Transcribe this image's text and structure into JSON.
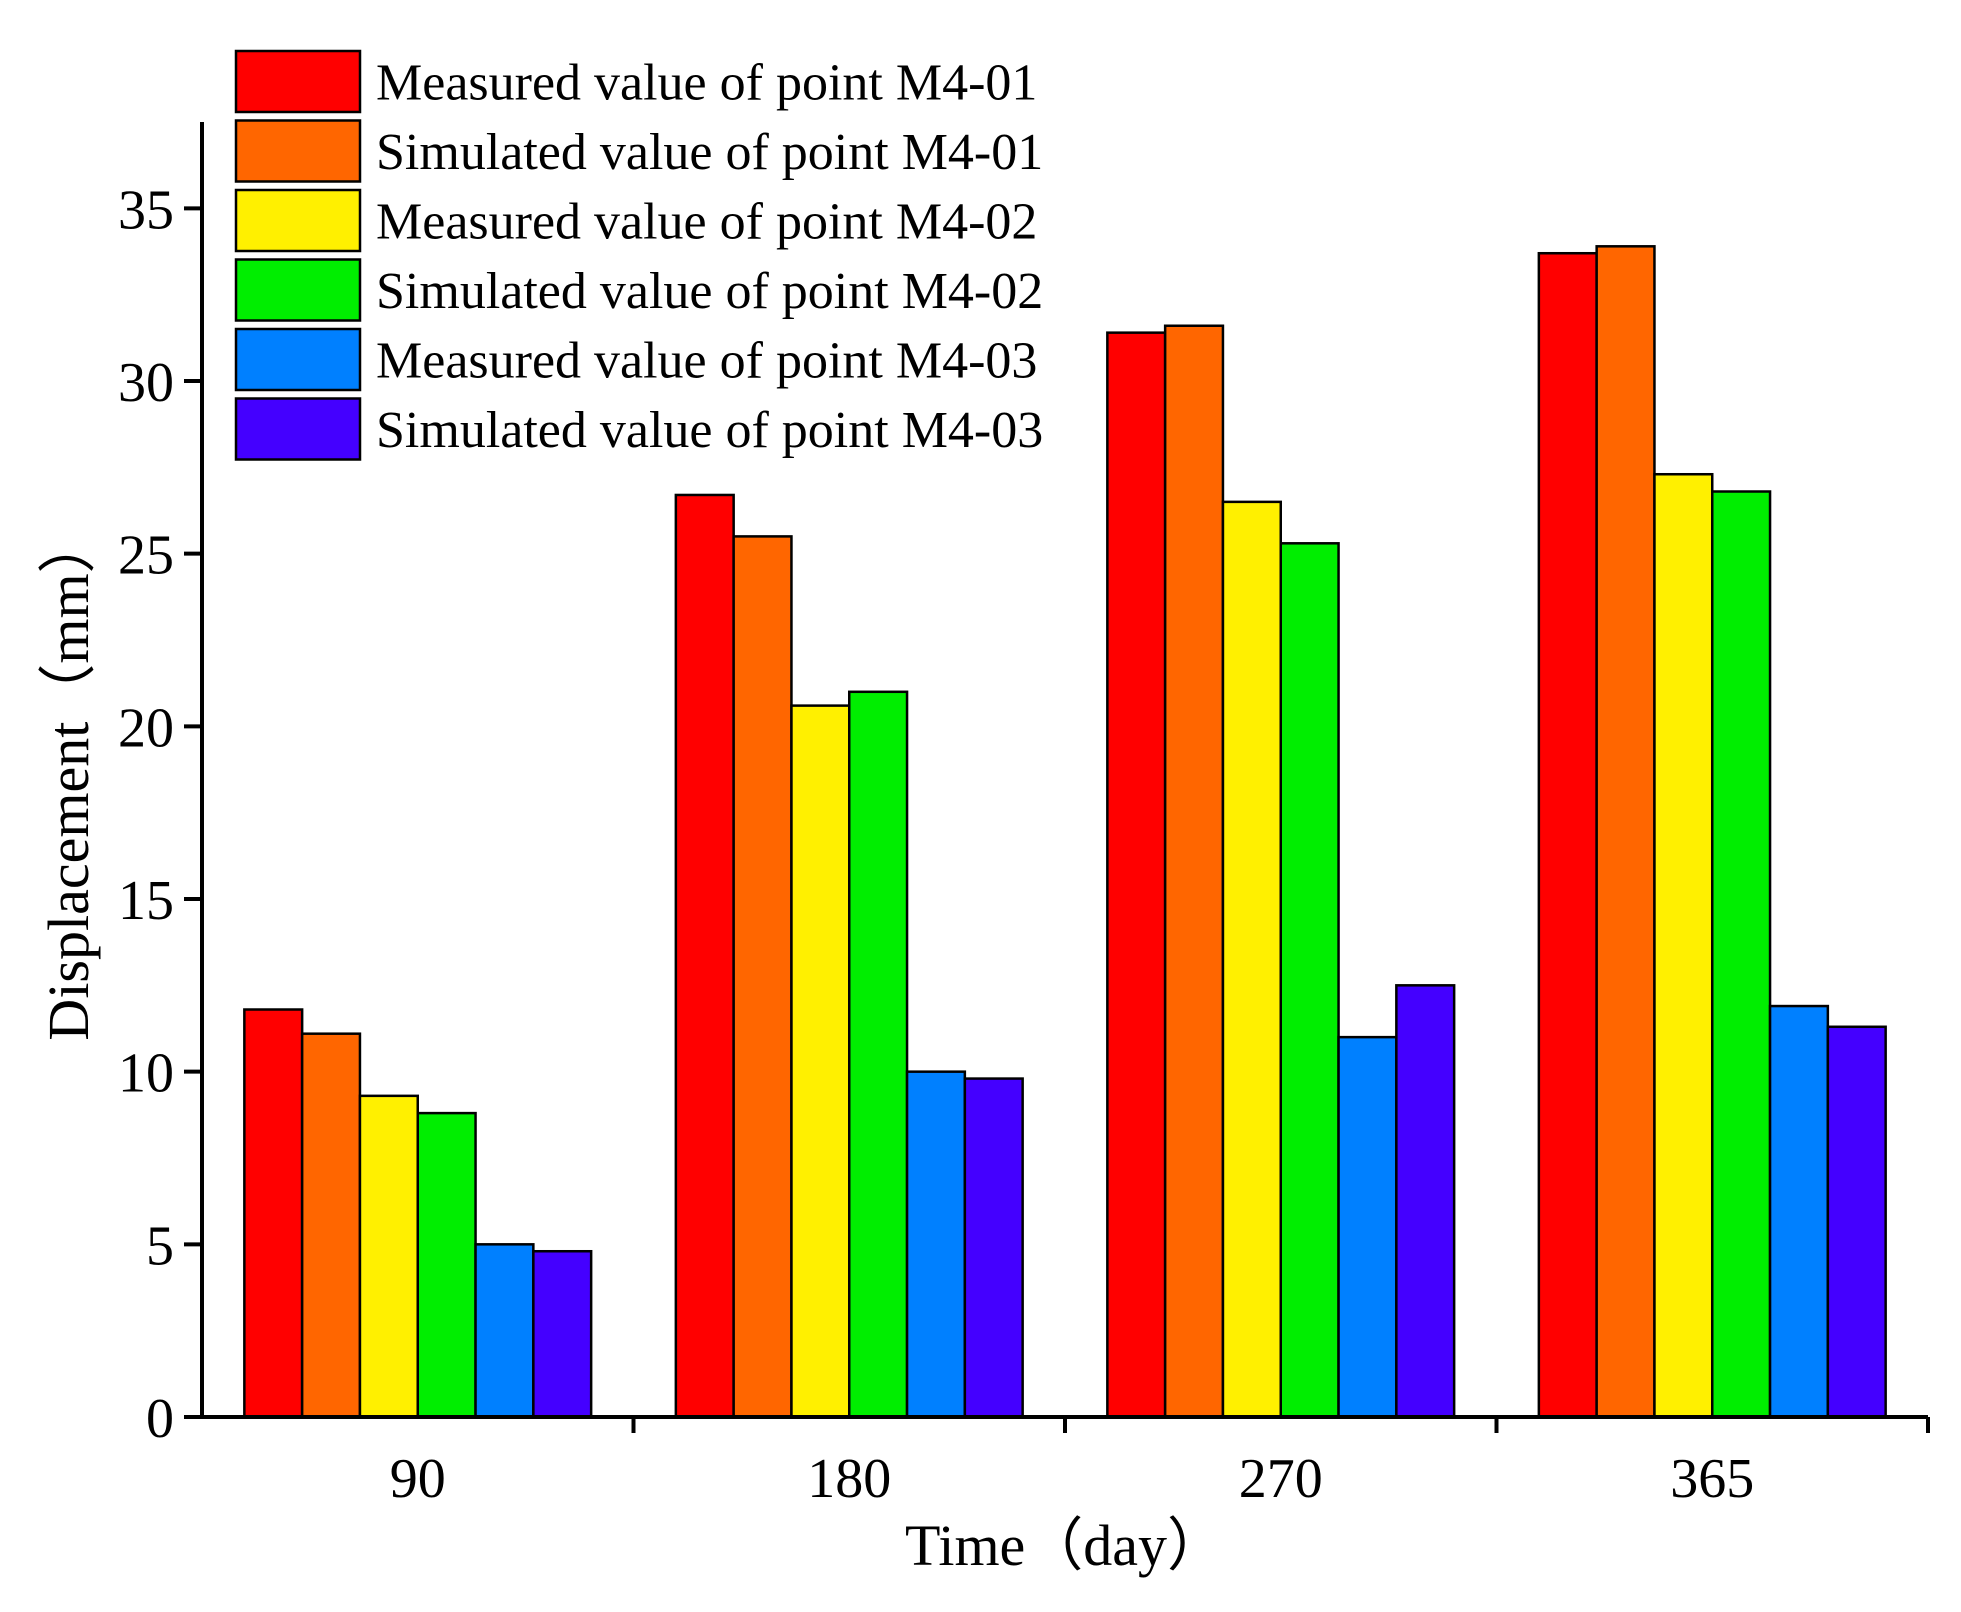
{
  "chart_data": {
    "type": "bar",
    "title": "",
    "xlabel": "Time（day）",
    "ylabel": "Displacement（mm）",
    "categories": [
      "90",
      "180",
      "270",
      "365"
    ],
    "ylim": [
      0,
      37.5
    ],
    "yticks": [
      0,
      5,
      10,
      15,
      20,
      25,
      30,
      35
    ],
    "grid": false,
    "legend_position": "top-left",
    "series": [
      {
        "name": "Measured value of point M4-01",
        "color": "#FF0000",
        "values": [
          11.8,
          26.7,
          31.4,
          33.7
        ]
      },
      {
        "name": "Simulated value of point M4-01",
        "color": "#FF6600",
        "values": [
          11.1,
          25.5,
          31.6,
          33.9
        ]
      },
      {
        "name": "Measured value of point M4-02",
        "color": "#FFF000",
        "values": [
          9.3,
          20.6,
          26.5,
          27.3
        ]
      },
      {
        "name": "Simulated value of point M4-02",
        "color": "#00EE00",
        "values": [
          8.8,
          21.0,
          25.3,
          26.8
        ]
      },
      {
        "name": "Measured value of point M4-03",
        "color": "#0080FF",
        "values": [
          5.0,
          10.0,
          11.0,
          11.9
        ]
      },
      {
        "name": "Simulated value of point M4-03",
        "color": "#4400FF",
        "values": [
          4.8,
          9.8,
          12.5,
          11.3
        ]
      }
    ]
  }
}
